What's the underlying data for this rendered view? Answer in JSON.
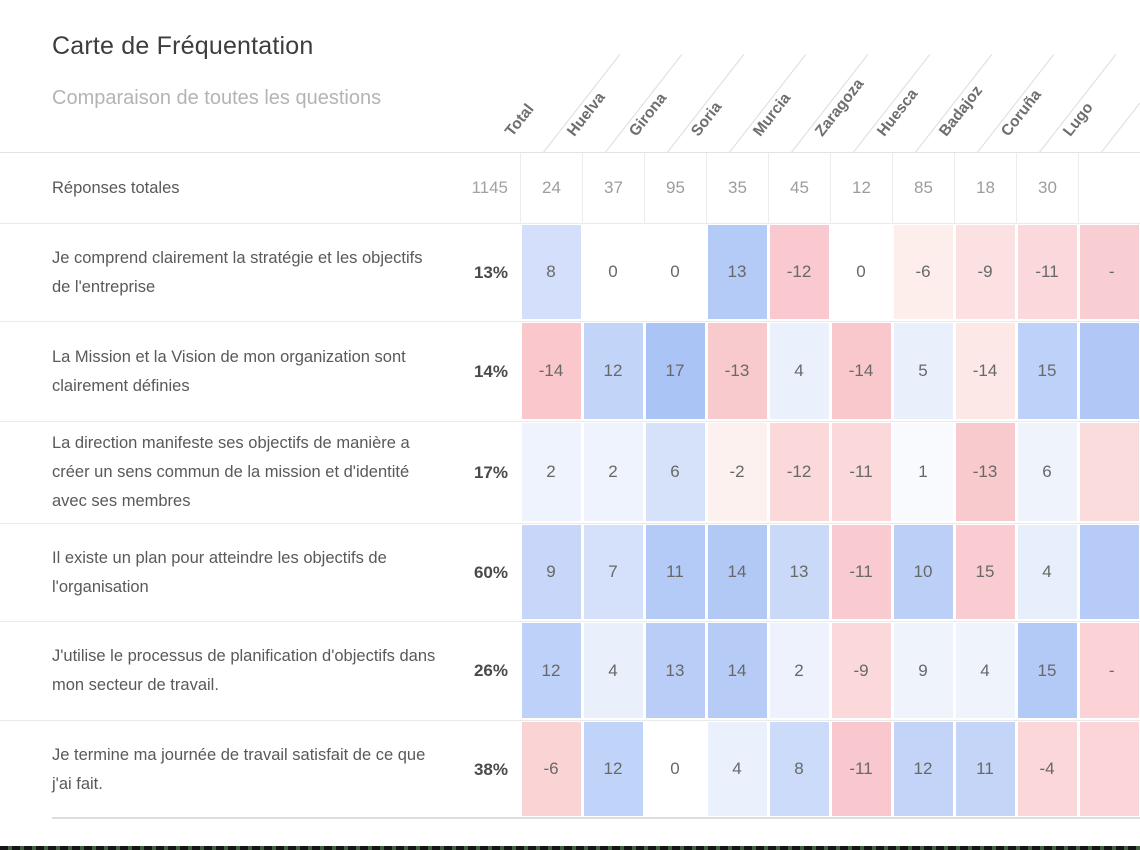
{
  "page": {
    "title": "Carte de Fréquentation",
    "subtitle": "Comparaison de toutes les questions"
  },
  "table": {
    "columns": [
      "Total",
      "Huelva",
      "Girona",
      "Soria",
      "Murcia",
      "Zaragoza",
      "Huesca",
      "Badajoz",
      "Coruña",
      "Lugo"
    ],
    "rows": [
      {
        "label": "Réponses totales",
        "total": "1145",
        "total_muted": true,
        "cells": [
          {
            "v": "24",
            "bg": "#ffffff"
          },
          {
            "v": "37",
            "bg": "#ffffff"
          },
          {
            "v": "95",
            "bg": "#ffffff"
          },
          {
            "v": "35",
            "bg": "#ffffff"
          },
          {
            "v": "45",
            "bg": "#ffffff"
          },
          {
            "v": "12",
            "bg": "#ffffff"
          },
          {
            "v": "85",
            "bg": "#ffffff"
          },
          {
            "v": "18",
            "bg": "#ffffff"
          },
          {
            "v": "30",
            "bg": "#ffffff"
          }
        ],
        "extra": {
          "v": "",
          "bg": "#ffffff"
        }
      },
      {
        "label": "Je comprend clairement la stratégie et les objectifs de l'entreprise",
        "total": "13%",
        "total_muted": false,
        "cells": [
          {
            "v": "8",
            "bg": "#d4e0fb"
          },
          {
            "v": "0",
            "bg": "#ffffff"
          },
          {
            "v": "0",
            "bg": "#ffffff"
          },
          {
            "v": "13",
            "bg": "#b4cbf7"
          },
          {
            "v": "-12",
            "bg": "#f9c9cf"
          },
          {
            "v": "0",
            "bg": "#ffffff"
          },
          {
            "v": "-6",
            "bg": "#fdeeec"
          },
          {
            "v": "-9",
            "bg": "#fce1e2"
          },
          {
            "v": "-11",
            "bg": "#fbd8db"
          }
        ],
        "extra": {
          "v": "-",
          "bg": "#f9ced3"
        }
      },
      {
        "label": "La Mission et la Vision de mon organization sont clairement définies",
        "total": "14%",
        "total_muted": false,
        "cells": [
          {
            "v": "-14",
            "bg": "#f9c7cc"
          },
          {
            "v": "12",
            "bg": "#c2d4f8"
          },
          {
            "v": "17",
            "bg": "#aac5f5"
          },
          {
            "v": "-13",
            "bg": "#f9cacd"
          },
          {
            "v": "4",
            "bg": "#eaf1fc"
          },
          {
            "v": "-14",
            "bg": "#f9c8cd"
          },
          {
            "v": "5",
            "bg": "#e9f0fc"
          },
          {
            "v": "-14",
            "bg": "#fce8e7"
          },
          {
            "v": "15",
            "bg": "#bed1f8"
          }
        ],
        "extra": {
          "v": "",
          "bg": "#b1c8f6"
        }
      },
      {
        "label": "La direction manifeste ses objectifs de manière a créer un sens commun de la mission et d'identité avec ses membres",
        "total": "17%",
        "total_muted": false,
        "cells": [
          {
            "v": "2",
            "bg": "#eef3fd"
          },
          {
            "v": "2",
            "bg": "#eef3fd"
          },
          {
            "v": "6",
            "bg": "#d6e1fa"
          },
          {
            "v": "-2",
            "bg": "#fdf1ef"
          },
          {
            "v": "-12",
            "bg": "#fbd8da"
          },
          {
            "v": "-11",
            "bg": "#fbd9db"
          },
          {
            "v": "1",
            "bg": "#f8fafe"
          },
          {
            "v": "-13",
            "bg": "#f9cacd"
          },
          {
            "v": "6",
            "bg": "#eef3fc"
          }
        ],
        "extra": {
          "v": "",
          "bg": "#fbdcdd"
        }
      },
      {
        "label": "Il existe un plan pour atteindre les objectifs de l'organisation",
        "total": "60%",
        "total_muted": false,
        "cells": [
          {
            "v": "9",
            "bg": "#c8d7f9"
          },
          {
            "v": "7",
            "bg": "#d5e0fa"
          },
          {
            "v": "11",
            "bg": "#b5cbf7"
          },
          {
            "v": "14",
            "bg": "#b2c9f6"
          },
          {
            "v": "13",
            "bg": "#cbd9f9"
          },
          {
            "v": "-11",
            "bg": "#f9cbd1"
          },
          {
            "v": "10",
            "bg": "#bbcff7"
          },
          {
            "v": "15",
            "bg": "#f9ccd2"
          },
          {
            "v": "4",
            "bg": "#e8effc"
          }
        ],
        "extra": {
          "v": "",
          "bg": "#b6cbf7"
        }
      },
      {
        "label": "J'utilise le processus de planification d'objectifs dans mon secteur de travail.",
        "total": "26%",
        "total_muted": false,
        "cells": [
          {
            "v": "12",
            "bg": "#bed1f8"
          },
          {
            "v": "4",
            "bg": "#e9f0fc"
          },
          {
            "v": "13",
            "bg": "#b9cdf7"
          },
          {
            "v": "14",
            "bg": "#b6ccf7"
          },
          {
            "v": "2",
            "bg": "#edf2fd"
          },
          {
            "v": "-9",
            "bg": "#fbd9da"
          },
          {
            "v": "9",
            "bg": "#eef3fc"
          },
          {
            "v": "4",
            "bg": "#eef3fc"
          },
          {
            "v": "15",
            "bg": "#b3c9f6"
          }
        ],
        "extra": {
          "v": "-",
          "bg": "#fbd3d6"
        }
      },
      {
        "label": "Je termine ma journée de travail satisfait de ce que j'ai fait.",
        "total": "38%",
        "total_muted": false,
        "cells": [
          {
            "v": "-6",
            "bg": "#fad3d5"
          },
          {
            "v": "12",
            "bg": "#c0d3f8"
          },
          {
            "v": "0",
            "bg": "#ffffff"
          },
          {
            "v": "4",
            "bg": "#eaf1fc"
          },
          {
            "v": "8",
            "bg": "#ccdbf9"
          },
          {
            "v": "-11",
            "bg": "#f9c8ce"
          },
          {
            "v": "12",
            "bg": "#c3d4f8"
          },
          {
            "v": "11",
            "bg": "#c4d5f8"
          },
          {
            "v": "-4",
            "bg": "#fbd7d9"
          }
        ],
        "extra": {
          "v": "",
          "bg": "#fbd5d7"
        }
      }
    ]
  },
  "colors": {
    "positive_strong": "#aac5f5",
    "negative_strong": "#f9c7cc",
    "neutral": "#ffffff",
    "separator": "#eaeaea"
  },
  "chart_data": {
    "type": "heatmap",
    "title": "Carte de Fréquentation",
    "subtitle": "Comparaison de toutes les questions",
    "columns": [
      "Huelva",
      "Girona",
      "Soria",
      "Murcia",
      "Zaragoza",
      "Huesca",
      "Badajoz",
      "Coruña",
      "Lugo"
    ],
    "rows": [
      {
        "label": "Réponses totales",
        "total": 1145,
        "values": [
          24,
          37,
          95,
          35,
          45,
          12,
          85,
          18,
          30
        ]
      },
      {
        "label": "Je comprend clairement la stratégie et les objectifs de l'entreprise",
        "total": "13%",
        "values": [
          8,
          0,
          0,
          13,
          -12,
          0,
          -6,
          -9,
          -11
        ]
      },
      {
        "label": "La Mission et la Vision de mon organization sont clairement définies",
        "total": "14%",
        "values": [
          -14,
          12,
          17,
          -13,
          4,
          -14,
          5,
          -14,
          15
        ]
      },
      {
        "label": "La direction manifeste ses objectifs de manière a créer un sens commun de la mission et d'identité avec ses membres",
        "total": "17%",
        "values": [
          2,
          2,
          6,
          -2,
          -12,
          -11,
          1,
          -13,
          6
        ]
      },
      {
        "label": "Il existe un plan pour atteindre les objectifs de l'organisation",
        "total": "60%",
        "values": [
          9,
          7,
          11,
          14,
          13,
          -11,
          10,
          15,
          4
        ]
      },
      {
        "label": "J'utilise le processus de planification d'objectifs dans mon secteur de travail.",
        "total": "26%",
        "values": [
          12,
          4,
          13,
          14,
          2,
          -9,
          9,
          4,
          15
        ]
      },
      {
        "label": "Je termine ma journée de travail satisfait de ce que j'ai fait.",
        "total": "38%",
        "values": [
          -6,
          12,
          0,
          4,
          8,
          -11,
          12,
          11,
          -4
        ]
      }
    ],
    "legend_position": "none",
    "grid": false,
    "color_positive": "#aac5f5",
    "color_negative": "#f9c7cc"
  }
}
